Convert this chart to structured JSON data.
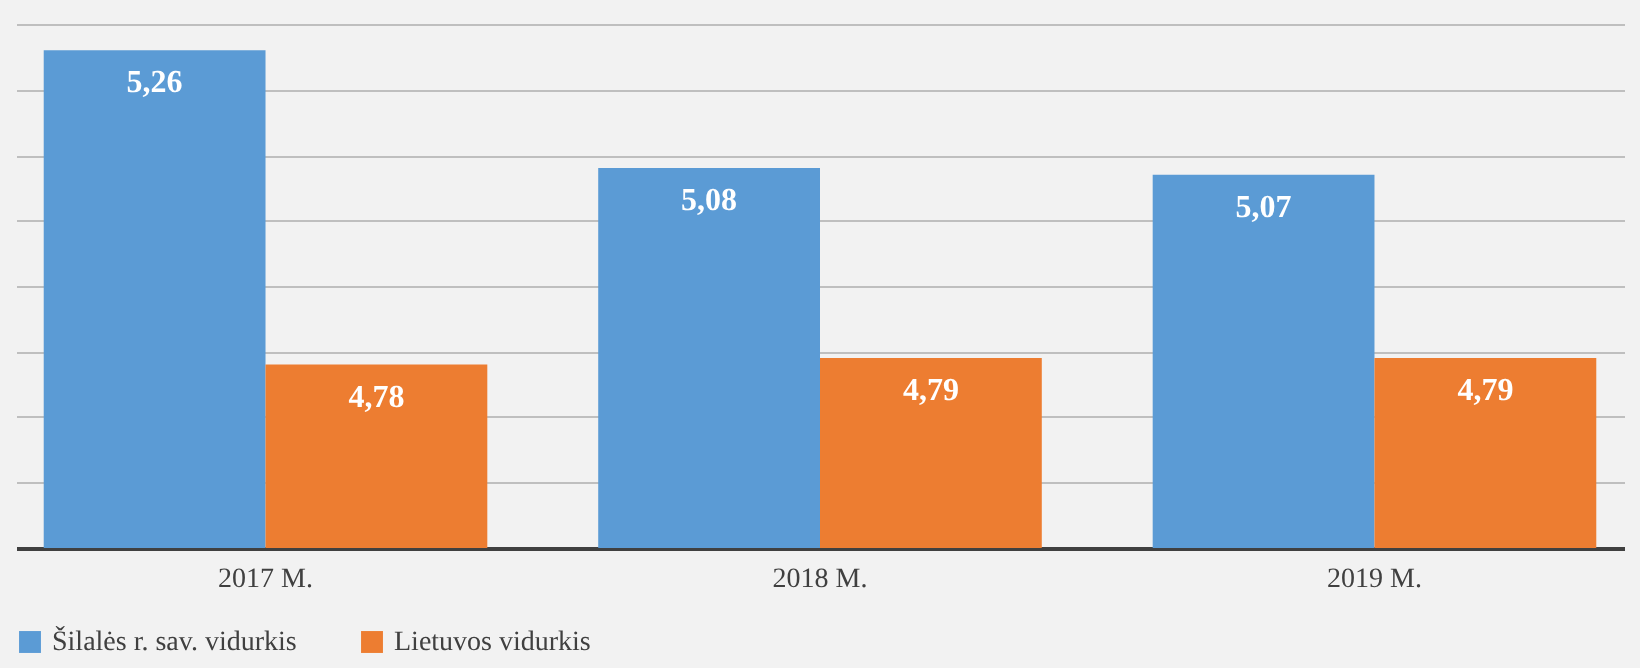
{
  "chart_data": {
    "type": "bar",
    "categories": [
      "2017 M.",
      "2018 M.",
      "2019 M."
    ],
    "series": [
      {
        "name": "Šilalės r. sav. vidurkis",
        "color": "#5b9bd5",
        "values": [
          5.26,
          5.08,
          5.07
        ],
        "value_labels": [
          "5,26",
          "5,08",
          "5,07"
        ]
      },
      {
        "name": "Lietuvos vidurkis",
        "color": "#ed7d31",
        "values": [
          4.78,
          4.79,
          4.79
        ],
        "value_labels": [
          "4,78",
          "4,79",
          "4,79"
        ]
      }
    ],
    "ylim": [
      4.5,
      5.3
    ],
    "tick_labels": "x",
    "grid": "y",
    "legend": "bottom"
  }
}
